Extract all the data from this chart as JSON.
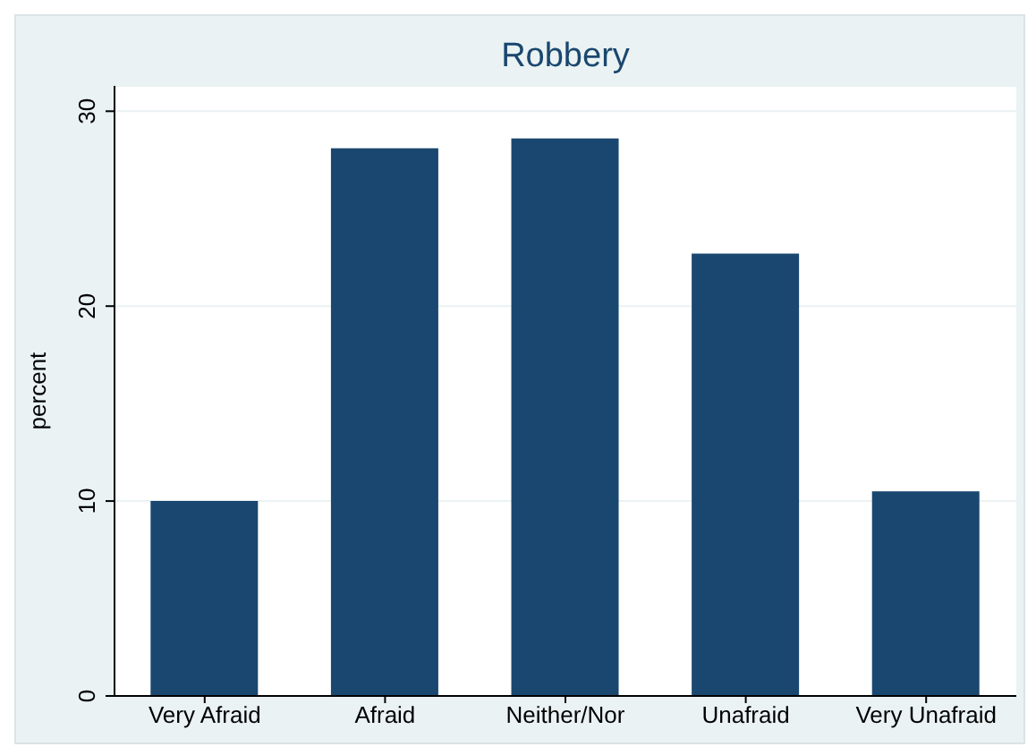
{
  "chart_data": {
    "type": "bar",
    "title": "Robbery",
    "ylabel": "percent",
    "categories": [
      "Very Afraid",
      "Afraid",
      "Neither/Nor",
      "Unafraid",
      "Very Unafraid"
    ],
    "values": [
      10.0,
      28.1,
      28.6,
      22.7,
      10.5
    ],
    "color": "#1a476f",
    "ylim": [
      0,
      31.3
    ],
    "yticks": [
      0,
      10,
      20,
      30
    ],
    "grid": "y"
  }
}
